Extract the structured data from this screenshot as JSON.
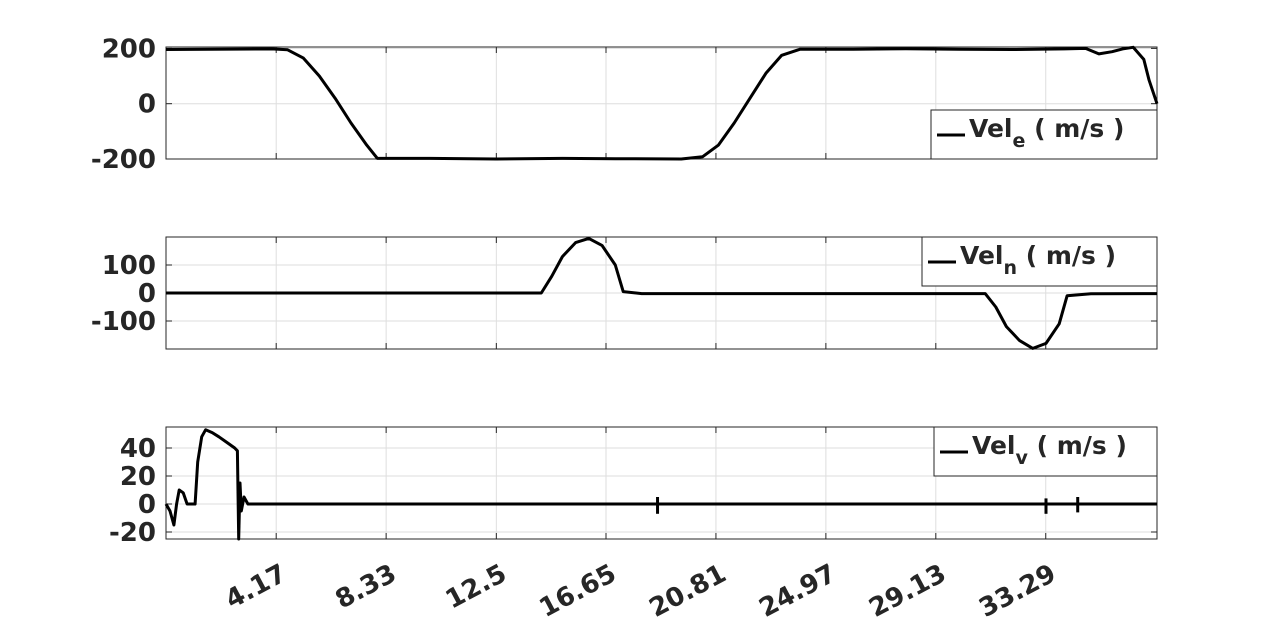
{
  "chart_data": [
    {
      "type": "line",
      "xlim": [
        0,
        37.5
      ],
      "ylim": [
        -200,
        205
      ],
      "grid": true,
      "legend_position": "bottom-right",
      "x_ticks": [
        4.17,
        8.33,
        12.5,
        16.65,
        20.81,
        24.97,
        29.13,
        33.29
      ],
      "y_ticks": [
        -200,
        0,
        200
      ],
      "y_tick_labels": [
        "-200",
        "0",
        "200"
      ],
      "legend": {
        "main": "Vel",
        "sub": "e",
        "unit": " ( m/s )"
      },
      "series": [
        {
          "color": "#000000",
          "x": [
            0,
            4.0,
            4.6,
            5.2,
            5.8,
            6.4,
            7.0,
            7.6,
            8.0,
            10.0,
            12.5,
            15.0,
            17.0,
            19.5,
            20.3,
            20.9,
            21.5,
            22.1,
            22.7,
            23.3,
            24.0,
            26.0,
            28.0,
            30.0,
            32.0,
            34.0,
            34.8,
            35.3,
            35.8,
            36.2,
            36.6,
            37.0,
            37.2,
            37.5
          ],
          "y": [
            196,
            198,
            195,
            165,
            100,
            20,
            -70,
            -150,
            -198,
            -198,
            -200,
            -198,
            -199,
            -200,
            -192,
            -150,
            -70,
            20,
            110,
            175,
            197,
            197,
            199,
            197,
            196,
            198,
            200,
            180,
            188,
            198,
            204,
            160,
            85,
            0
          ]
        }
      ]
    },
    {
      "type": "line",
      "xlim": [
        0,
        37.5
      ],
      "ylim": [
        -200,
        200
      ],
      "grid": true,
      "legend_position": "top-right",
      "x_ticks": [
        4.17,
        8.33,
        12.5,
        16.65,
        20.81,
        24.97,
        29.13,
        33.29
      ],
      "y_ticks": [
        -100,
        0,
        100
      ],
      "y_tick_labels": [
        "-100",
        "0",
        "100"
      ],
      "legend": {
        "main": "Vel",
        "sub": "n",
        "unit": "  ( m/s )"
      },
      "series": [
        {
          "color": "#000000",
          "x": [
            0,
            14.2,
            14.6,
            15.0,
            15.5,
            16.0,
            16.5,
            17.0,
            17.3,
            18.0,
            20.0,
            31.0,
            31.4,
            31.8,
            32.3,
            32.8,
            33.3,
            33.8,
            34.1,
            35.0,
            37.5
          ],
          "y": [
            0,
            0,
            60,
            130,
            180,
            195,
            170,
            100,
            5,
            -2,
            -2,
            -2,
            -50,
            -120,
            -170,
            -198,
            -180,
            -110,
            -10,
            -3,
            -2
          ]
        }
      ]
    },
    {
      "type": "line",
      "xlim": [
        0,
        37.5
      ],
      "ylim": [
        -25,
        55
      ],
      "grid": true,
      "legend_position": "top-right",
      "x_ticks": [
        4.17,
        8.33,
        12.5,
        16.65,
        20.81,
        24.97,
        29.13,
        33.29
      ],
      "x_tick_labels": [
        "4.17",
        "8.33",
        "12.5",
        "16.65",
        "20.81",
        "24.97",
        "29.13",
        "33.29"
      ],
      "y_ticks": [
        -20,
        0,
        20,
        40
      ],
      "y_tick_labels": [
        "-20",
        "0",
        "20",
        "40"
      ],
      "legend": {
        "main": "Vel",
        "sub": "v",
        "unit": " ( m/s )"
      },
      "series": [
        {
          "color": "#000000",
          "x": [
            0,
            0.15,
            0.3,
            0.4,
            0.5,
            0.65,
            0.8,
            1.1,
            1.2,
            1.35,
            1.5,
            1.75,
            2.0,
            2.3,
            2.6,
            2.7,
            2.75,
            2.8,
            2.85,
            2.95,
            3.1,
            3.3,
            37.5
          ],
          "y": [
            0,
            -5,
            -15,
            0,
            10,
            8,
            0,
            0,
            30,
            48,
            53,
            51,
            48,
            44,
            40,
            38,
            -25,
            15,
            -5,
            5,
            0,
            0,
            0
          ]
        }
      ],
      "spikes": [
        {
          "x": 18.6,
          "low": -7,
          "high": 5
        },
        {
          "x": 33.3,
          "low": -7,
          "high": 4
        },
        {
          "x": 34.5,
          "low": -6,
          "high": 5
        }
      ]
    }
  ]
}
